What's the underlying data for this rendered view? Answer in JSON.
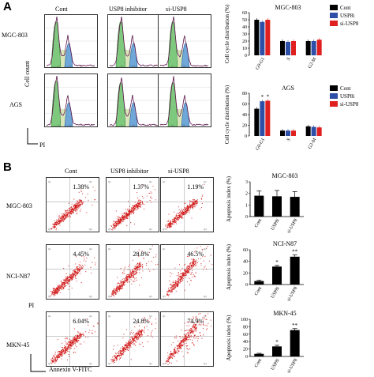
{
  "panel_a": {
    "letter": "A",
    "column_labels": [
      "Cont",
      "USP8 inhibitor",
      "si-USP8"
    ],
    "row_labels": [
      "MGC-803",
      "AGS"
    ],
    "y_label": "Cell count",
    "x_label": "PI"
  },
  "panel_b": {
    "letter": "B",
    "column_labels": [
      "Cont",
      "USP8 inhibitor",
      "si-USP8"
    ],
    "row_labels": [
      "MGC-803",
      "NCI-N87",
      "MKN-45"
    ],
    "y_label": "PI",
    "x_label": "Annexin V-FITC",
    "percentages": [
      [
        "1.38%",
        "1.37%",
        "1.19%"
      ],
      [
        "4.45%",
        "28.8%",
        "46.5%"
      ],
      [
        "6.04%",
        "24.8%",
        "74.9%"
      ]
    ]
  },
  "chart_data": [
    {
      "type": "bar",
      "title": "MGC-803",
      "ylabel": "Cell cycle distribution (%)",
      "categories": [
        "G0-G1",
        "S",
        "G2-M"
      ],
      "ylim": [
        0,
        60
      ],
      "yticks": [
        "0",
        "10",
        "20",
        "30",
        "40",
        "50",
        "60"
      ],
      "series": [
        {
          "name": "Cont",
          "color": "#000000",
          "values": [
            50,
            20,
            20
          ]
        },
        {
          "name": "USP8i",
          "color": "#2e4fa8",
          "values": [
            47,
            19,
            20
          ]
        },
        {
          "name": "si-USP8",
          "color": "#e02020",
          "values": [
            50,
            20,
            22
          ]
        }
      ],
      "legend": "top-right"
    },
    {
      "type": "bar",
      "title": "AGS",
      "ylabel": "Cell cycle distribution (%)",
      "categories": [
        "G0-G1",
        "S",
        "G2-M"
      ],
      "ylim": [
        0,
        80
      ],
      "yticks": [
        "0",
        "20",
        "40",
        "60",
        "80"
      ],
      "series": [
        {
          "name": "Cont",
          "color": "#000000",
          "values": [
            51,
            10,
            18
          ]
        },
        {
          "name": "USP8i",
          "color": "#2e4fa8",
          "values": [
            65,
            10,
            17
          ]
        },
        {
          "name": "si-USP8",
          "color": "#e02020",
          "values": [
            66,
            10,
            16
          ]
        }
      ],
      "annotations": [
        "*",
        "*"
      ],
      "legend": "top-right"
    },
    {
      "type": "bar",
      "title": "MGC-803",
      "ylabel": "Apoptosis index (%)",
      "categories": [
        "Cont",
        "USP8i",
        "si-USP8"
      ],
      "ylim": [
        0,
        3
      ],
      "yticks": [
        "0",
        "1",
        "2",
        "3"
      ],
      "values": [
        1.8,
        1.75,
        1.7
      ],
      "errors": [
        0.4,
        0.5,
        0.45
      ],
      "stars": [
        "",
        "",
        ""
      ]
    },
    {
      "type": "bar",
      "title": "NCI-N87",
      "ylabel": "Apoptosis index (%)",
      "categories": [
        "Cont",
        "USP8i",
        "si-USP8"
      ],
      "ylim": [
        0,
        60
      ],
      "yticks": [
        "0",
        "20",
        "40",
        "60"
      ],
      "values": [
        6,
        31,
        48
      ],
      "errors": [
        1.5,
        2,
        3
      ],
      "stars": [
        "",
        "*",
        "**"
      ]
    },
    {
      "type": "bar",
      "title": "MKN-45",
      "ylabel": "Apoptosis index (%)",
      "categories": [
        "Cont",
        "USP8i",
        "si-USP8"
      ],
      "ylim": [
        0,
        100
      ],
      "yticks": [
        "0",
        "20",
        "40",
        "60",
        "80",
        "100"
      ],
      "values": [
        7,
        27,
        71
      ],
      "errors": [
        1.5,
        3,
        4
      ],
      "stars": [
        "",
        "*",
        "**"
      ]
    }
  ]
}
